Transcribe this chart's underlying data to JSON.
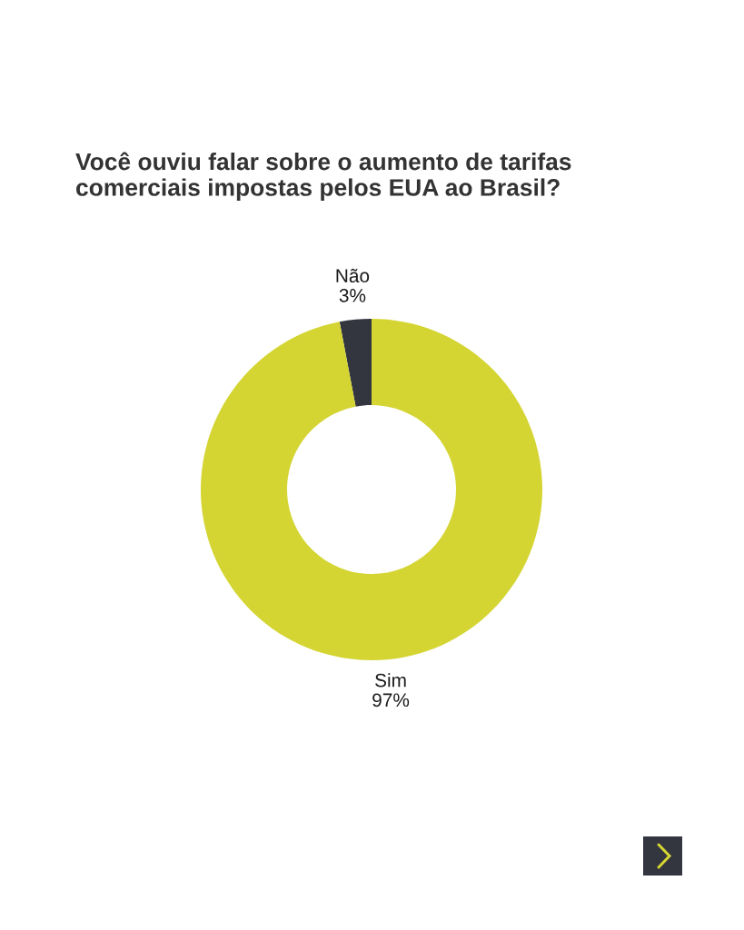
{
  "chart_data": {
    "type": "donut",
    "title": "Você ouviu falar sobre o aumento de tarifas\ncomerciais impostas pelos EUA ao Brasil?",
    "categories": [
      "Não",
      "Sim"
    ],
    "values": [
      3,
      97
    ],
    "colors": [
      "#33353f",
      "#d4d533"
    ],
    "value_labels": [
      "3%",
      "97%"
    ],
    "legend": false
  }
}
